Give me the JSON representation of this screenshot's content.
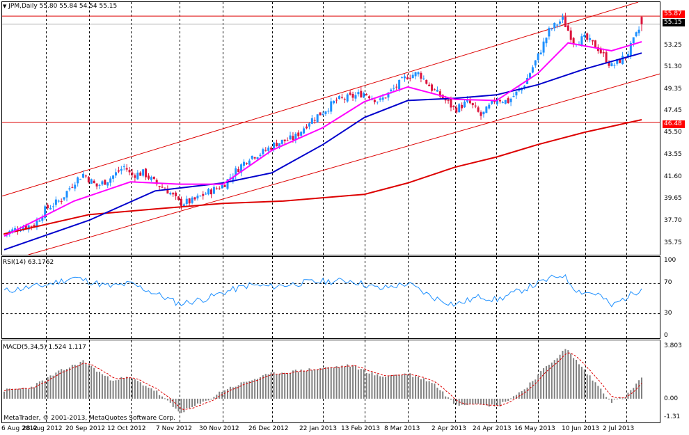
{
  "header": {
    "symbol_line": "JPM,Daily  55.80 55.84 54.54 55.15"
  },
  "price_axis": {
    "ticks": [
      "53.25",
      "51.30",
      "49.35",
      "47.45",
      "45.50",
      "43.55",
      "41.60",
      "39.65",
      "37.70",
      "35.75"
    ]
  },
  "price_tags": {
    "high": "55.87",
    "current": "55.15",
    "level": "46.48"
  },
  "rsi": {
    "label": "RSI(14) 63.1762",
    "ticks": [
      "100",
      "70",
      "30",
      "0"
    ]
  },
  "macd": {
    "label": "MACD(5,34,5) 1.524 1.117",
    "ticks": [
      "3.803",
      "0.00",
      "-1.31"
    ]
  },
  "copyright": "MetaTrader, © 2001-2013, MetaQuotes Software Corp.",
  "time_axis": [
    "6 Aug 2012",
    "28 Aug 2012",
    "20 Sep 2012",
    "12 Oct 2012",
    "7 Nov 2012",
    "30 Nov 2012",
    "26 Dec 2012",
    "22 Jan 2013",
    "13 Feb 2013",
    "8 Mar 2013",
    "2 Apr 2013",
    "24 Apr 2013",
    "16 May 2013",
    "10 Jun 2013",
    "2 Jul 2013"
  ],
  "colors": {
    "up": "#1e90ff",
    "down": "#dc143c",
    "ma_fast": "#ff00ff",
    "ma_mid": "#0000cd",
    "ma_slow": "#dd0000",
    "channel": "#dd0000",
    "rsi": "#1e90ff",
    "macd_hist": "#808080",
    "macd_signal": "#dd0000"
  },
  "chart_data": {
    "type": "candlestick",
    "symbol": "JPM",
    "timeframe": "Daily",
    "last_bar": {
      "open": 55.8,
      "high": 55.84,
      "low": 54.54,
      "close": 55.15
    },
    "price_range": [
      35.0,
      56.8
    ],
    "close_path": [
      [
        "2012-08-06",
        36.6
      ],
      [
        "2012-08-15",
        37.2
      ],
      [
        "2012-08-22",
        37.4
      ],
      [
        "2012-08-28",
        38.8
      ],
      [
        "2012-09-05",
        39.6
      ],
      [
        "2012-09-12",
        41.2
      ],
      [
        "2012-09-17",
        41.9
      ],
      [
        "2012-09-24",
        40.8
      ],
      [
        "2012-10-01",
        41.5
      ],
      [
        "2012-10-09",
        42.6
      ],
      [
        "2012-10-12",
        41.8
      ],
      [
        "2012-10-19",
        42.0
      ],
      [
        "2012-10-25",
        41.1
      ],
      [
        "2012-11-01",
        40.4
      ],
      [
        "2012-11-07",
        39.3
      ],
      [
        "2012-11-14",
        39.5
      ],
      [
        "2012-11-21",
        40.2
      ],
      [
        "2012-11-30",
        40.9
      ],
      [
        "2012-12-07",
        42.2
      ],
      [
        "2012-12-14",
        43.4
      ],
      [
        "2012-12-21",
        43.8
      ],
      [
        "2012-12-28",
        44.6
      ],
      [
        "2013-01-07",
        45.1
      ],
      [
        "2013-01-15",
        46.6
      ],
      [
        "2013-01-22",
        47.4
      ],
      [
        "2013-01-29",
        48.4
      ],
      [
        "2013-02-06",
        48.7
      ],
      [
        "2013-02-13",
        49.1
      ],
      [
        "2013-02-21",
        48.3
      ],
      [
        "2013-03-01",
        49.5
      ],
      [
        "2013-03-08",
        50.6
      ],
      [
        "2013-03-14",
        50.8
      ],
      [
        "2013-03-21",
        49.4
      ],
      [
        "2013-03-28",
        48.4
      ],
      [
        "2013-04-02",
        47.6
      ],
      [
        "2013-04-09",
        48.3
      ],
      [
        "2013-04-16",
        47.0
      ],
      [
        "2013-04-24",
        48.6
      ],
      [
        "2013-04-30",
        48.3
      ],
      [
        "2013-05-08",
        49.6
      ],
      [
        "2013-05-16",
        52.3
      ],
      [
        "2013-05-22",
        54.6
      ],
      [
        "2013-05-29",
        55.6
      ],
      [
        "2013-06-04",
        53.6
      ],
      [
        "2013-06-10",
        53.9
      ],
      [
        "2013-06-17",
        53.0
      ],
      [
        "2013-06-24",
        51.4
      ],
      [
        "2013-07-02",
        52.4
      ],
      [
        "2013-07-10",
        55.15
      ]
    ],
    "ma_fast_path": [
      [
        "2012-08-06",
        36.4
      ],
      [
        "2012-09-12",
        39.5
      ],
      [
        "2012-10-12",
        41.2
      ],
      [
        "2012-11-07",
        41.0
      ],
      [
        "2012-11-30",
        41.0
      ],
      [
        "2012-12-26",
        44.0
      ],
      [
        "2013-01-22",
        46.0
      ],
      [
        "2013-02-13",
        48.3
      ],
      [
        "2013-03-08",
        49.6
      ],
      [
        "2013-04-02",
        48.5
      ],
      [
        "2013-04-24",
        48.4
      ],
      [
        "2013-05-16",
        50.8
      ],
      [
        "2013-06-01",
        53.5
      ],
      [
        "2013-06-24",
        52.8
      ],
      [
        "2013-07-10",
        53.6
      ]
    ],
    "ma_mid_path": [
      [
        "2012-08-06",
        35.2
      ],
      [
        "2012-09-20",
        37.8
      ],
      [
        "2012-10-25",
        40.4
      ],
      [
        "2012-11-30",
        41.1
      ],
      [
        "2012-12-26",
        42.0
      ],
      [
        "2013-01-22",
        44.5
      ],
      [
        "2013-02-13",
        46.9
      ],
      [
        "2013-03-08",
        48.4
      ],
      [
        "2013-04-02",
        48.6
      ],
      [
        "2013-04-24",
        48.9
      ],
      [
        "2013-05-16",
        49.8
      ],
      [
        "2013-06-10",
        51.2
      ],
      [
        "2013-07-10",
        52.6
      ]
    ],
    "ma_slow_path": [
      [
        "2012-08-06",
        36.6
      ],
      [
        "2012-09-20",
        38.3
      ],
      [
        "2012-10-25",
        38.8
      ],
      [
        "2012-11-30",
        39.3
      ],
      [
        "2013-01-01",
        39.5
      ],
      [
        "2013-02-13",
        40.1
      ],
      [
        "2013-03-08",
        41.1
      ],
      [
        "2013-04-02",
        42.5
      ],
      [
        "2013-04-24",
        43.4
      ],
      [
        "2013-05-16",
        44.5
      ],
      [
        "2013-06-10",
        45.6
      ],
      [
        "2013-07-10",
        46.7
      ]
    ],
    "horizontal_levels": [
      55.87,
      46.48
    ],
    "channel": {
      "upper": [
        [
          "2012-08-06",
          40.0
        ],
        [
          "2013-07-10",
          57.2
        ]
      ],
      "lower": [
        [
          "2012-11-01",
          38.3
        ],
        [
          "2013-07-10",
          50.3
        ]
      ]
    },
    "rsi": {
      "period": 14,
      "last": 63.1762,
      "levels": [
        70,
        30
      ],
      "range": [
        0,
        100
      ],
      "path": [
        [
          "2012-08-06",
          60
        ],
        [
          "2012-08-28",
          68
        ],
        [
          "2012-09-12",
          78
        ],
        [
          "2012-10-01",
          66
        ],
        [
          "2012-10-12",
          70
        ],
        [
          "2012-10-25",
          57
        ],
        [
          "2012-11-07",
          43
        ],
        [
          "2012-11-21",
          50
        ],
        [
          "2012-11-30",
          58
        ],
        [
          "2012-12-14",
          68
        ],
        [
          "2012-12-26",
          66
        ],
        [
          "2013-01-15",
          72
        ],
        [
          "2013-02-06",
          74
        ],
        [
          "2013-02-21",
          63
        ],
        [
          "2013-03-08",
          70
        ],
        [
          "2013-03-21",
          52
        ],
        [
          "2013-04-02",
          42
        ],
        [
          "2013-04-16",
          53
        ],
        [
          "2013-04-24",
          48
        ],
        [
          "2013-05-08",
          62
        ],
        [
          "2013-05-22",
          76
        ],
        [
          "2013-05-29",
          82
        ],
        [
          "2013-06-06",
          60
        ],
        [
          "2013-06-17",
          56
        ],
        [
          "2013-06-24",
          40
        ],
        [
          "2013-07-02",
          52
        ],
        [
          "2013-07-10",
          63.2
        ]
      ]
    },
    "macd": {
      "fast": 5,
      "slow": 34,
      "signal": 5,
      "last_main": 1.524,
      "last_signal": 1.117,
      "range": [
        -1.31,
        3.803
      ],
      "path": [
        [
          "2012-08-06",
          0.6
        ],
        [
          "2012-08-20",
          0.8
        ],
        [
          "2012-09-05",
          2.0
        ],
        [
          "2012-09-17",
          2.7
        ],
        [
          "2012-10-01",
          1.4
        ],
        [
          "2012-10-12",
          1.5
        ],
        [
          "2012-10-25",
          0.6
        ],
        [
          "2012-11-07",
          -1.0
        ],
        [
          "2012-11-21",
          -0.2
        ],
        [
          "2012-11-30",
          0.6
        ],
        [
          "2012-12-14",
          1.3
        ],
        [
          "2012-12-26",
          1.8
        ],
        [
          "2013-01-15",
          2.1
        ],
        [
          "2013-02-06",
          2.4
        ],
        [
          "2013-02-21",
          1.6
        ],
        [
          "2013-03-08",
          1.8
        ],
        [
          "2013-03-21",
          1.2
        ],
        [
          "2013-04-02",
          -0.4
        ],
        [
          "2013-04-16",
          -0.3
        ],
        [
          "2013-04-24",
          -0.6
        ],
        [
          "2013-05-08",
          0.6
        ],
        [
          "2013-05-22",
          2.5
        ],
        [
          "2013-05-31",
          3.6
        ],
        [
          "2013-06-10",
          2.0
        ],
        [
          "2013-06-24",
          -0.2
        ],
        [
          "2013-07-02",
          0.2
        ],
        [
          "2013-07-10",
          1.524
        ]
      ]
    }
  }
}
